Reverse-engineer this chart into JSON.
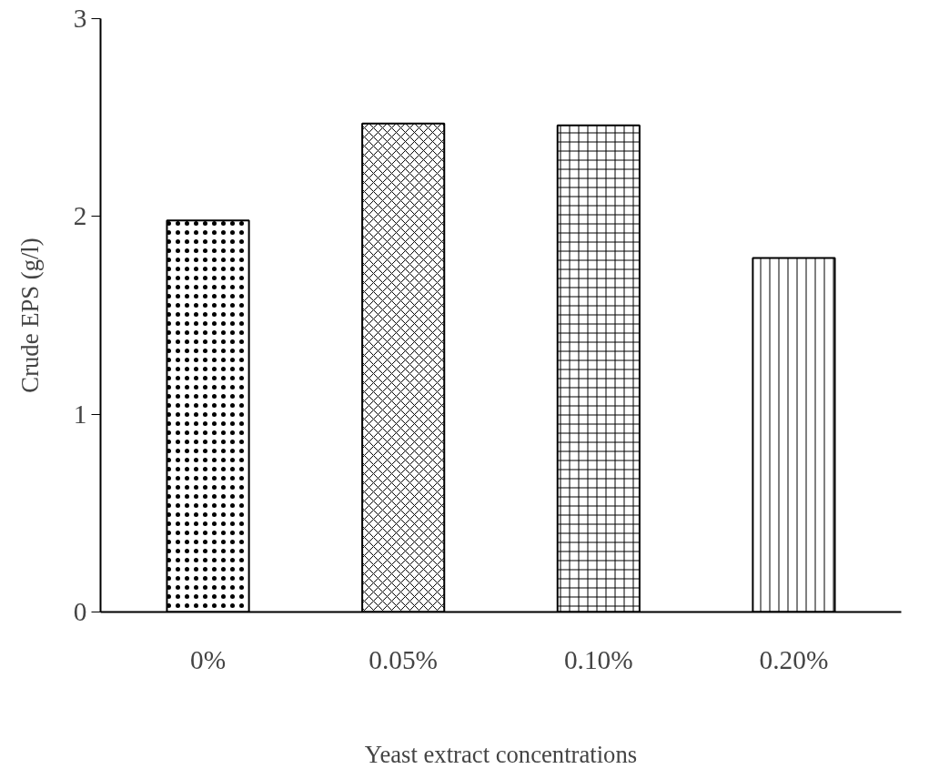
{
  "chart_data": {
    "type": "bar",
    "xlabel": "Yeast extract concentrations",
    "ylabel": "Crude EPS (g/l)",
    "categories": [
      "0%",
      "0.05%",
      "0.10%",
      "0.20%"
    ],
    "values": [
      1.98,
      2.47,
      2.46,
      1.79
    ],
    "color": "#000000",
    "ylim": [
      0,
      3
    ],
    "yticks": [
      0,
      1,
      2,
      3
    ],
    "grid": false
  }
}
